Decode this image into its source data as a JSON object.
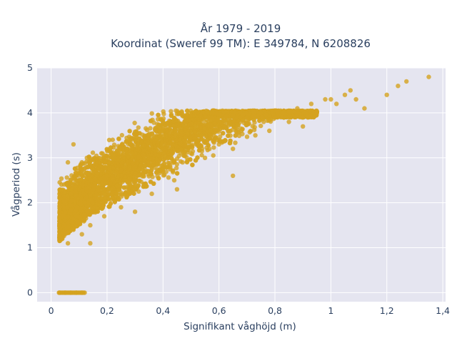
{
  "chart_data": {
    "type": "scatter",
    "title_line1": "År 1979 - 2019",
    "title_line2": "Koordinat (Sweref 99 TM): E 349784, N 6208826",
    "xlabel": "Signifikant våghöjd (m)",
    "ylabel": "Vågperiod (s)",
    "xlim": [
      -0.05,
      1.41
    ],
    "ylim": [
      -0.2,
      5.0
    ],
    "x_ticks": [
      0,
      0.2,
      0.4,
      0.6,
      0.8,
      1,
      1.2,
      1.4
    ],
    "x_tick_labels": [
      "0",
      "0,2",
      "0,4",
      "0,6",
      "0,8",
      "1",
      "1,2",
      "1,4"
    ],
    "y_ticks": [
      0,
      1,
      2,
      3,
      4,
      5
    ],
    "y_tick_labels": [
      "0",
      "1",
      "2",
      "3",
      "4",
      "5"
    ],
    "grid": true,
    "legend": "none",
    "colors": {
      "marker": "#d4a21f",
      "plot_bg": "#e5e5f0",
      "grid": "#ffffff",
      "text": "#2a3f5f"
    },
    "series": [
      {
        "values": [
          [
            0.03,
            0.0
          ],
          [
            0.05,
            0.0
          ],
          [
            0.07,
            0.0
          ],
          [
            0.09,
            0.0
          ],
          [
            0.11,
            0.0
          ],
          [
            0.12,
            0.0
          ],
          [
            0.03,
            1.5
          ],
          [
            0.04,
            1.2
          ],
          [
            0.05,
            1.8
          ],
          [
            0.06,
            1.1
          ],
          [
            0.07,
            2.2
          ],
          [
            0.08,
            1.4
          ],
          [
            0.09,
            1.7
          ],
          [
            0.1,
            2.5
          ],
          [
            0.11,
            1.3
          ],
          [
            0.12,
            2.0
          ],
          [
            0.13,
            2.8
          ],
          [
            0.14,
            1.5
          ],
          [
            0.15,
            2.3
          ],
          [
            0.16,
            1.9
          ],
          [
            0.17,
            2.9
          ],
          [
            0.18,
            2.1
          ],
          [
            0.19,
            1.7
          ],
          [
            0.2,
            2.6
          ],
          [
            0.22,
            2.2
          ],
          [
            0.24,
            3.0
          ],
          [
            0.25,
            1.9
          ],
          [
            0.26,
            2.5
          ],
          [
            0.28,
            2.8
          ],
          [
            0.3,
            2.3
          ],
          [
            0.31,
            3.2
          ],
          [
            0.33,
            2.6
          ],
          [
            0.35,
            2.9
          ],
          [
            0.36,
            2.2
          ],
          [
            0.38,
            3.3
          ],
          [
            0.4,
            2.7
          ],
          [
            0.42,
            3.0
          ],
          [
            0.44,
            2.5
          ],
          [
            0.45,
            3.4
          ],
          [
            0.47,
            2.9
          ],
          [
            0.5,
            3.1
          ],
          [
            0.52,
            3.5
          ],
          [
            0.55,
            3.0
          ],
          [
            0.57,
            3.6
          ],
          [
            0.6,
            3.3
          ],
          [
            0.62,
            3.7
          ],
          [
            0.65,
            3.2
          ],
          [
            0.68,
            3.6
          ],
          [
            0.7,
            3.9
          ],
          [
            0.73,
            3.5
          ],
          [
            0.76,
            3.8
          ],
          [
            0.78,
            3.6
          ],
          [
            0.8,
            3.9
          ],
          [
            0.83,
            4.0
          ],
          [
            0.85,
            3.8
          ],
          [
            0.88,
            4.1
          ],
          [
            0.9,
            3.9
          ],
          [
            0.93,
            4.2
          ],
          [
            0.95,
            4.0
          ],
          [
            0.98,
            4.3
          ],
          [
            1.02,
            4.2
          ],
          [
            1.05,
            4.4
          ],
          [
            1.07,
            4.5
          ],
          [
            1.09,
            4.3
          ],
          [
            1.12,
            4.1
          ],
          [
            1.2,
            4.4
          ],
          [
            1.24,
            4.6
          ],
          [
            1.27,
            4.7
          ],
          [
            1.35,
            4.8
          ],
          [
            0.08,
            3.3
          ],
          [
            0.06,
            2.9
          ],
          [
            0.22,
            3.4
          ],
          [
            0.4,
            3.6
          ],
          [
            0.58,
            4.0
          ],
          [
            0.65,
            2.6
          ],
          [
            0.45,
            2.3
          ],
          [
            0.3,
            1.8
          ],
          [
            0.14,
            1.1
          ],
          [
            0.9,
            3.7
          ],
          [
            1.0,
            4.3
          ],
          [
            0.75,
            4.0
          ],
          [
            0.35,
            3.5
          ],
          [
            0.18,
            3.1
          ],
          [
            0.11,
            2.9
          ]
        ]
      }
    ]
  }
}
